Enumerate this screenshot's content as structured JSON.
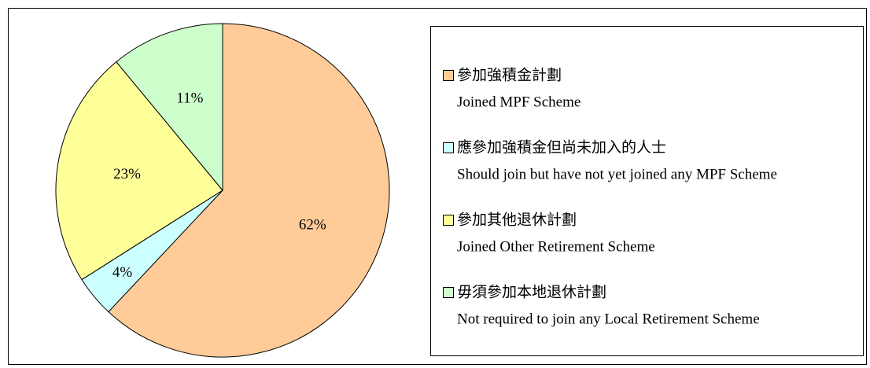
{
  "chart_data": {
    "type": "pie",
    "categories": [
      "參加強積金計劃",
      "應參加強積金但尚未加入的人士",
      "參加其他退休計劃",
      "毋須參加本地退休計劃"
    ],
    "category_subtitles": [
      "Joined MPF Scheme",
      "Should join but have not yet joined any MPF Scheme",
      "Joined Other Retirement Scheme",
      "Not required to join any Local Retirement Scheme"
    ],
    "values": [
      62,
      4,
      23,
      11
    ],
    "value_labels": [
      "62%",
      "4%",
      "23%",
      "11%"
    ],
    "colors": [
      "#FFCC99",
      "#CCFFFF",
      "#FFFF99",
      "#CCFFCC"
    ],
    "legend": "right"
  }
}
